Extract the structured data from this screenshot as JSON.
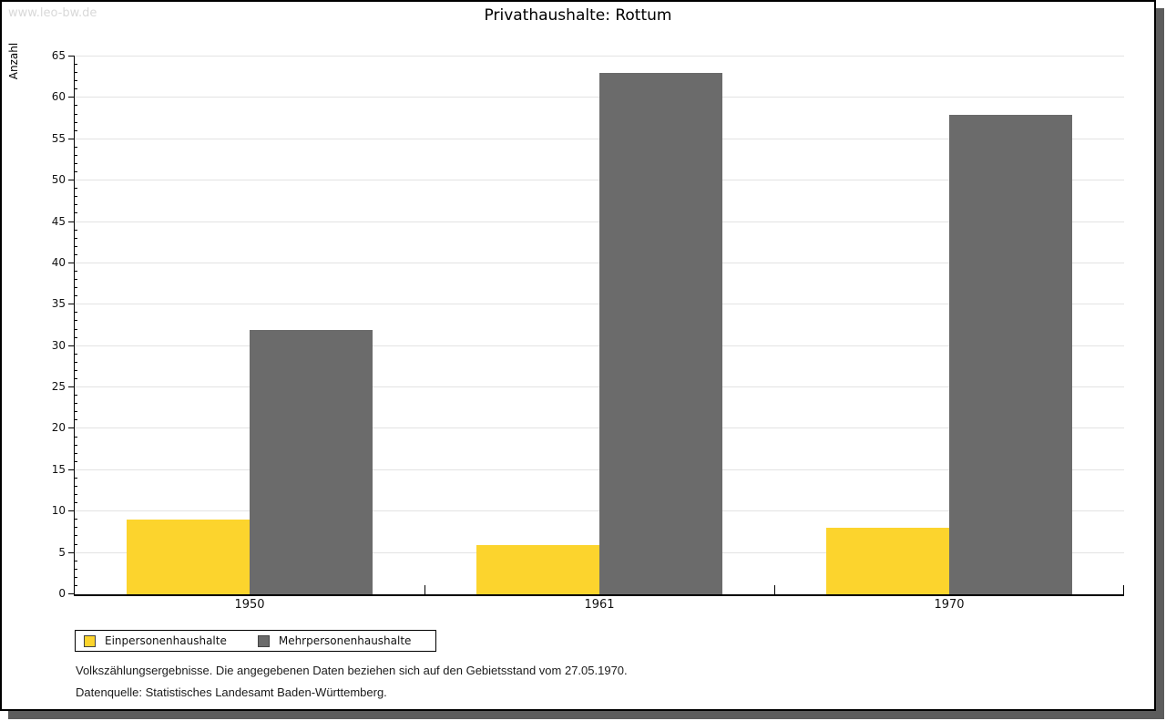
{
  "watermark": "www.leo-bw.de",
  "chart_data": {
    "type": "bar",
    "title": "Privathaushalte: Rottum",
    "ylabel": "Anzahl",
    "xlabel": "",
    "categories": [
      "1950",
      "1961",
      "1970"
    ],
    "series": [
      {
        "name": "Einpersonenhaushalte",
        "color": "#fcd42d",
        "values": [
          9,
          6,
          8
        ]
      },
      {
        "name": "Mehrpersonenhaushalte",
        "color": "#6b6b6b",
        "values": [
          32,
          63,
          58
        ]
      }
    ],
    "ylim": [
      0,
      65
    ],
    "ytick_step": 5,
    "minor_tick_step": 1,
    "grid": true,
    "legend_position": "bottom-left"
  },
  "footer": {
    "line1": "Volkszählungsergebnisse. Die angegebenen Daten beziehen sich auf den Gebietsstand vom 27.05.1970.",
    "line2": "Datenquelle: Statistisches Landesamt Baden-Württemberg."
  }
}
